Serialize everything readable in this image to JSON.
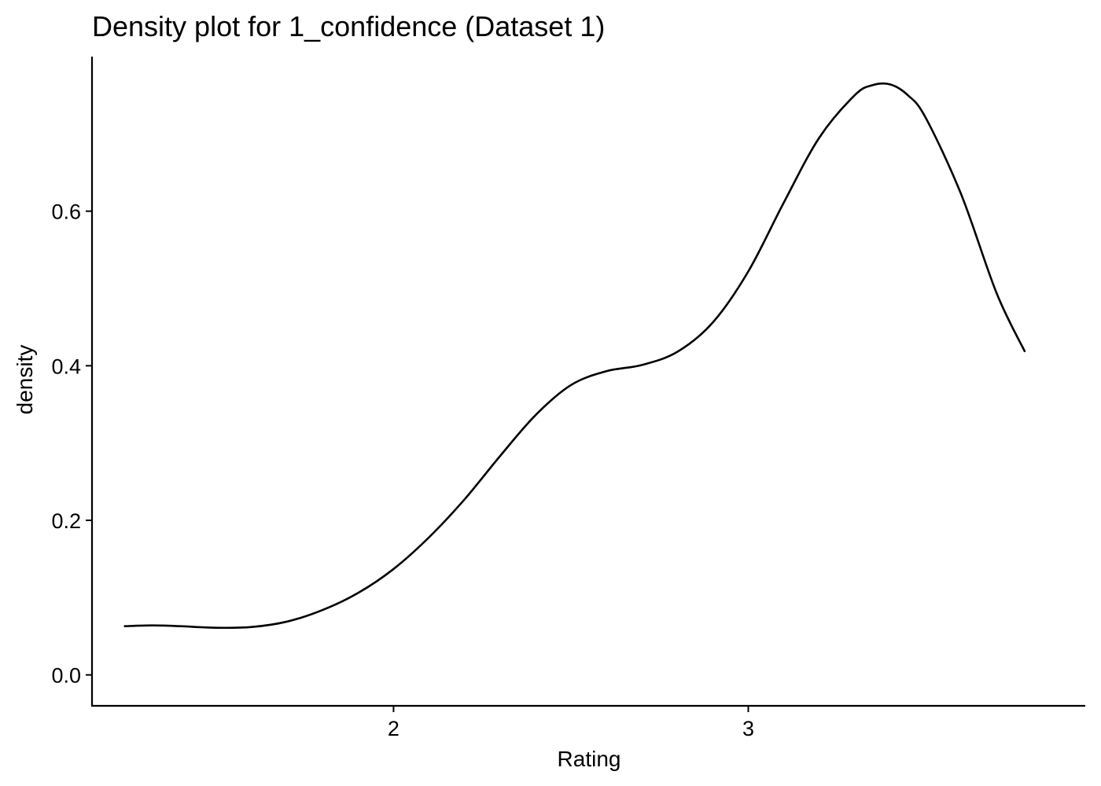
{
  "chart_data": {
    "type": "line",
    "title": "Density plot for 1_confidence (Dataset 1)",
    "xlabel": "Rating",
    "ylabel": "density",
    "xlim": [
      1.15,
      3.95
    ],
    "ylim": [
      -0.04,
      0.8
    ],
    "x_ticks": [
      2,
      3
    ],
    "x_tick_labels": [
      "2",
      "3"
    ],
    "y_ticks": [
      0.0,
      0.2,
      0.4,
      0.6
    ],
    "y_tick_labels": [
      "0.0",
      "0.2",
      "0.4",
      "0.6"
    ],
    "grid": false,
    "legend": "none",
    "line_color": "#000000",
    "series": [
      {
        "x": [
          1.24,
          1.32,
          1.4,
          1.5,
          1.6,
          1.7,
          1.8,
          1.9,
          2.0,
          2.1,
          2.2,
          2.3,
          2.4,
          2.5,
          2.6,
          2.7,
          2.8,
          2.9,
          3.0,
          3.1,
          3.2,
          3.3,
          3.35,
          3.4,
          3.45,
          3.5,
          3.6,
          3.7,
          3.78
        ],
        "y": [
          0.063,
          0.064,
          0.063,
          0.061,
          0.062,
          0.069,
          0.084,
          0.106,
          0.137,
          0.178,
          0.227,
          0.283,
          0.336,
          0.375,
          0.393,
          0.401,
          0.418,
          0.456,
          0.522,
          0.611,
          0.695,
          0.75,
          0.763,
          0.764,
          0.75,
          0.721,
          0.622,
          0.494,
          0.418
        ]
      }
    ]
  }
}
